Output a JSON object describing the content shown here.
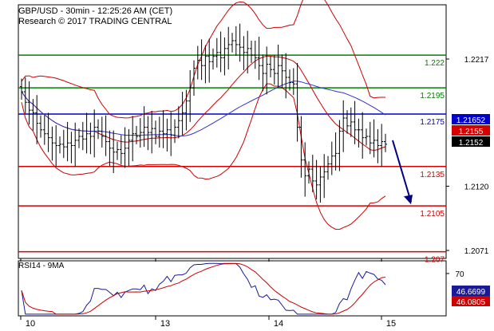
{
  "header": {
    "line1": "GBP/USD - 30min - 12:25:26 AM (CET)",
    "line2": "Research © 2017 TRADING CENTRAL"
  },
  "colors": {
    "support": "#d40000",
    "resistance": "#008000",
    "pivot": "#0000cc",
    "price_bars": "#000000",
    "bollinger": "#cc0000",
    "moving_average": "#3333cc",
    "rsi": "#1a1a99",
    "rsi_ma": "#cc0000",
    "price_tag_bg": "#000000",
    "arrow": "#000080"
  },
  "chart_data": [
    {
      "type": "candlestick-ohlc",
      "name": "price",
      "x_tick_labels": [
        "10",
        "13",
        "14",
        "15"
      ],
      "y_tick_labels": [
        "1.2217",
        "1.2120",
        "1.2071"
      ],
      "ylim": [
        1.2055,
        1.226
      ],
      "levels": [
        {
          "label": "1.222",
          "value": 1.222,
          "role": "resistance"
        },
        {
          "label": "1.2195",
          "value": 1.2195,
          "role": "resistance"
        },
        {
          "label": "1.2175",
          "value": 1.2175,
          "role": "pivot"
        },
        {
          "label": "1.2135",
          "value": 1.2135,
          "role": "support"
        },
        {
          "label": "1.2105",
          "value": 1.2105,
          "role": "support"
        },
        {
          "label": "1.207",
          "value": 1.207,
          "role": "support"
        }
      ],
      "price_tags": [
        {
          "label": "1.21652",
          "value": 1.21652,
          "color": "#0000cc"
        },
        {
          "label": "1.2155",
          "value": 1.2155,
          "color": "#d40000"
        },
        {
          "label": "1.2152",
          "value": 1.2152,
          "color": "#000000"
        }
      ],
      "close": [
        1.2192,
        1.2184,
        1.2178,
        1.2176,
        1.2168,
        1.2163,
        1.216,
        1.2157,
        1.2153,
        1.2151,
        1.2152,
        1.215,
        1.2153,
        1.2151,
        1.2155,
        1.2158,
        1.2156,
        1.216,
        1.2158,
        1.2165,
        1.2162,
        1.2158,
        1.2154,
        1.2149,
        1.2146,
        1.2148,
        1.2145,
        1.2149,
        1.2155,
        1.216,
        1.2158,
        1.2161,
        1.2165,
        1.2161,
        1.2164,
        1.2158,
        1.2162,
        1.216,
        1.2163,
        1.2159,
        1.2165,
        1.217,
        1.2176,
        1.2185,
        1.2195,
        1.221,
        1.2216,
        1.2212,
        1.2219,
        1.2215,
        1.2219,
        1.2222,
        1.2218,
        1.2225,
        1.2228,
        1.2231,
        1.2228,
        1.2226,
        1.2222,
        1.2225,
        1.222,
        1.2218,
        1.2212,
        1.2206,
        1.2213,
        1.2209,
        1.2206,
        1.2212,
        1.2208,
        1.2203,
        1.2199,
        1.2198,
        1.2165,
        1.214,
        1.2128,
        1.2133,
        1.2124,
        1.2121,
        1.2127,
        1.2131,
        1.2137,
        1.2143,
        1.2145,
        1.2162,
        1.2172,
        1.2166,
        1.2169,
        1.2163,
        1.2163,
        1.2157,
        1.2158,
        1.2153,
        1.2155,
        1.2151,
        1.2154,
        1.2152
      ],
      "projection_arrow": {
        "from_value": 1.2155,
        "to_value": 1.2108
      }
    },
    {
      "type": "line",
      "name": "RSI14 - 9MA",
      "y_tick_labels": [
        "70"
      ],
      "ylim": [
        20,
        85
      ],
      "value_tags": [
        {
          "label": "46.6699",
          "color": "#1a1a99"
        },
        {
          "label": "46.0805",
          "color": "#cc0000"
        }
      ]
    }
  ],
  "rsi_title": "RSI14 - 9MA"
}
